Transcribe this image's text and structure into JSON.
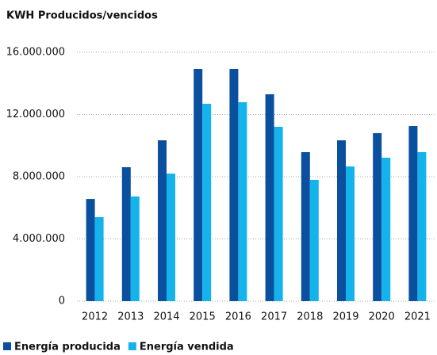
{
  "chart_data": {
    "type": "bar",
    "title": "KWH Producidos/vencidos",
    "categories": [
      "2012",
      "2013",
      "2014",
      "2015",
      "2016",
      "2017",
      "2018",
      "2019",
      "2020",
      "2021"
    ],
    "series": [
      {
        "name": "Energía producida",
        "color": "#0b4f9f",
        "values": [
          6570000,
          8610000,
          10340000,
          14930000,
          14930000,
          13300000,
          9580000,
          10340000,
          10800000,
          11260000
        ]
      },
      {
        "name": "Energía vendida",
        "color": "#14b3ec",
        "values": [
          5400000,
          6730000,
          8200000,
          12690000,
          12790000,
          11210000,
          7800000,
          8660000,
          9220000,
          9580000
        ]
      }
    ],
    "ylim": [
      0,
      16000000
    ],
    "yticks": [
      0,
      {
        "value": 4000000,
        "label": "4.000.000"
      },
      {
        "value": 8000000,
        "label": "8.000.000"
      },
      {
        "value": 12000000,
        "label": "12.000.000"
      },
      {
        "value": 16000000,
        "label": "16.000.000"
      }
    ],
    "grid": true
  }
}
